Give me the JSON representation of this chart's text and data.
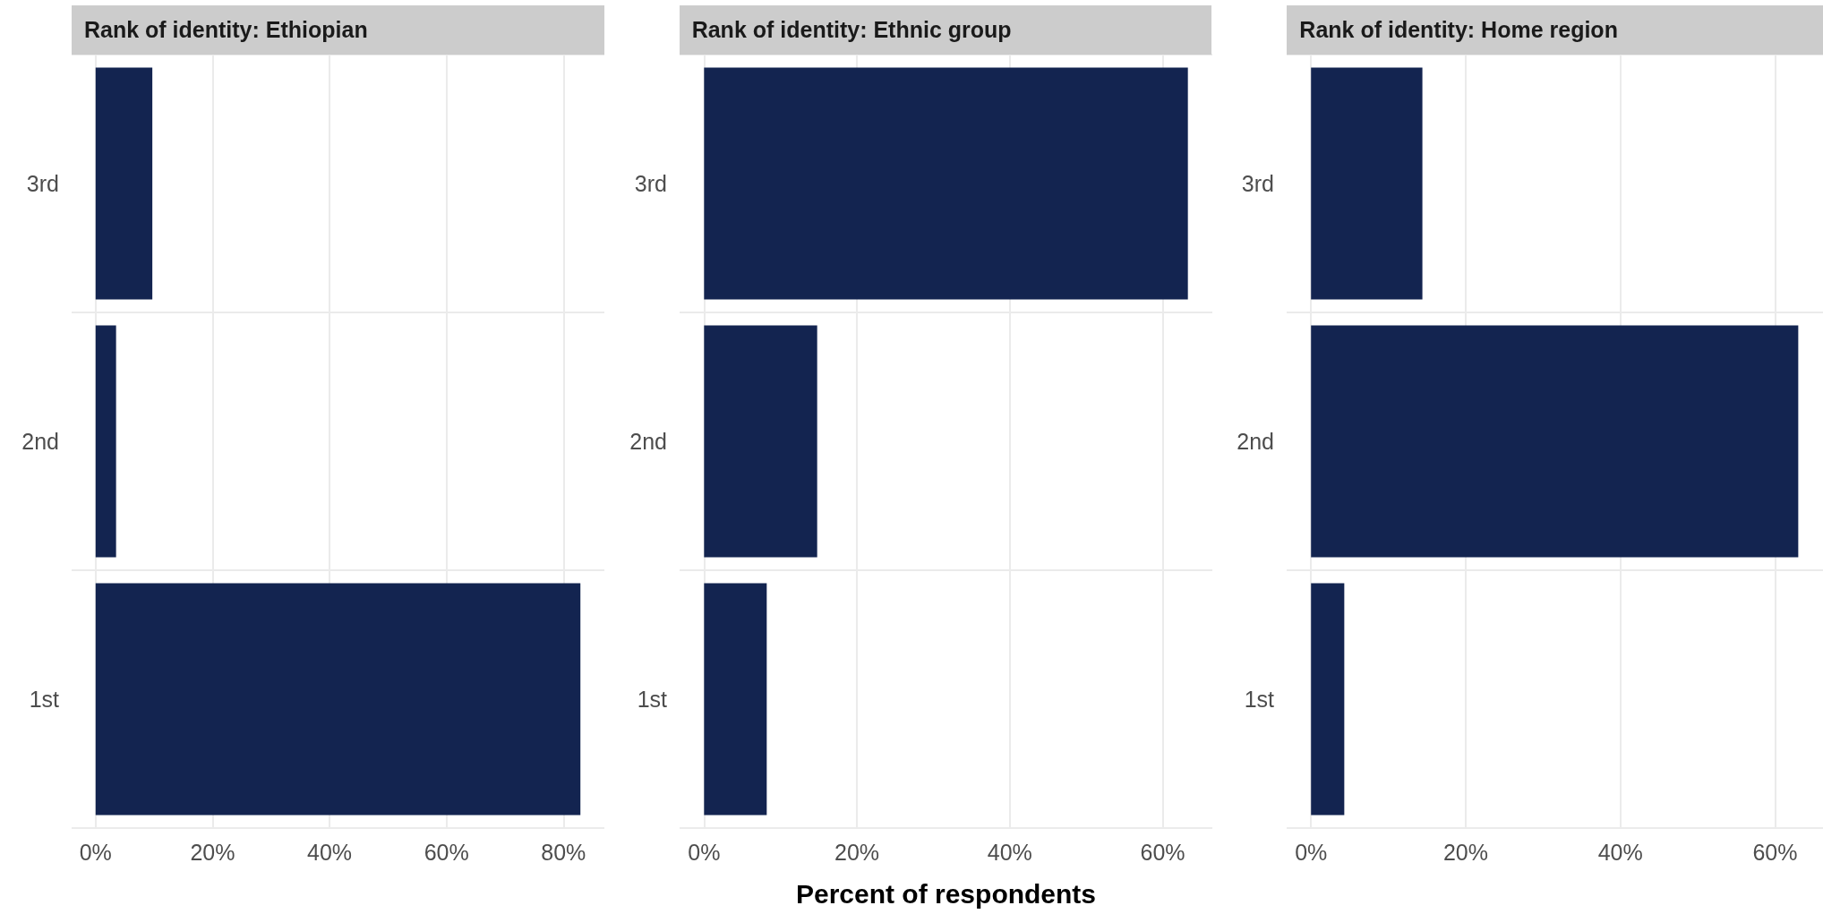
{
  "chart_data": [
    {
      "type": "bar",
      "orientation": "horizontal",
      "title": "Rank of identity: Ethiopian",
      "categories": [
        "3rd",
        "2nd",
        "1st"
      ],
      "values": [
        9.7,
        3.5,
        82.9
      ],
      "color": "#132450",
      "xlim": [
        -4.1,
        87
      ],
      "xticks": [
        {
          "value": 0,
          "label": "0%"
        },
        {
          "value": 20,
          "label": "20%"
        },
        {
          "value": 40,
          "label": "40%"
        },
        {
          "value": 60,
          "label": "60%"
        },
        {
          "value": 80,
          "label": "80%"
        }
      ],
      "grid": true
    },
    {
      "type": "bar",
      "orientation": "horizontal",
      "title": "Rank of identity: Ethnic group",
      "xlabel": "Percent of respondents",
      "categories": [
        "3rd",
        "2nd",
        "1st"
      ],
      "values": [
        63.3,
        14.8,
        8.2
      ],
      "color": "#132450",
      "xlim": [
        -3.2,
        66.5
      ],
      "xticks": [
        {
          "value": 0,
          "label": "0%"
        },
        {
          "value": 20,
          "label": "20%"
        },
        {
          "value": 40,
          "label": "40%"
        },
        {
          "value": 60,
          "label": "60%"
        }
      ],
      "grid": true
    },
    {
      "type": "bar",
      "orientation": "horizontal",
      "title": "Rank of identity: Home region",
      "categories": [
        "3rd",
        "2nd",
        "1st"
      ],
      "values": [
        14.4,
        63.0,
        4.3
      ],
      "color": "#132450",
      "xlim": [
        -3.15,
        66.2
      ],
      "xticks": [
        {
          "value": 0,
          "label": "0%"
        },
        {
          "value": 20,
          "label": "20%"
        },
        {
          "value": 40,
          "label": "40%"
        },
        {
          "value": 60,
          "label": "60%"
        }
      ],
      "grid": true
    }
  ]
}
